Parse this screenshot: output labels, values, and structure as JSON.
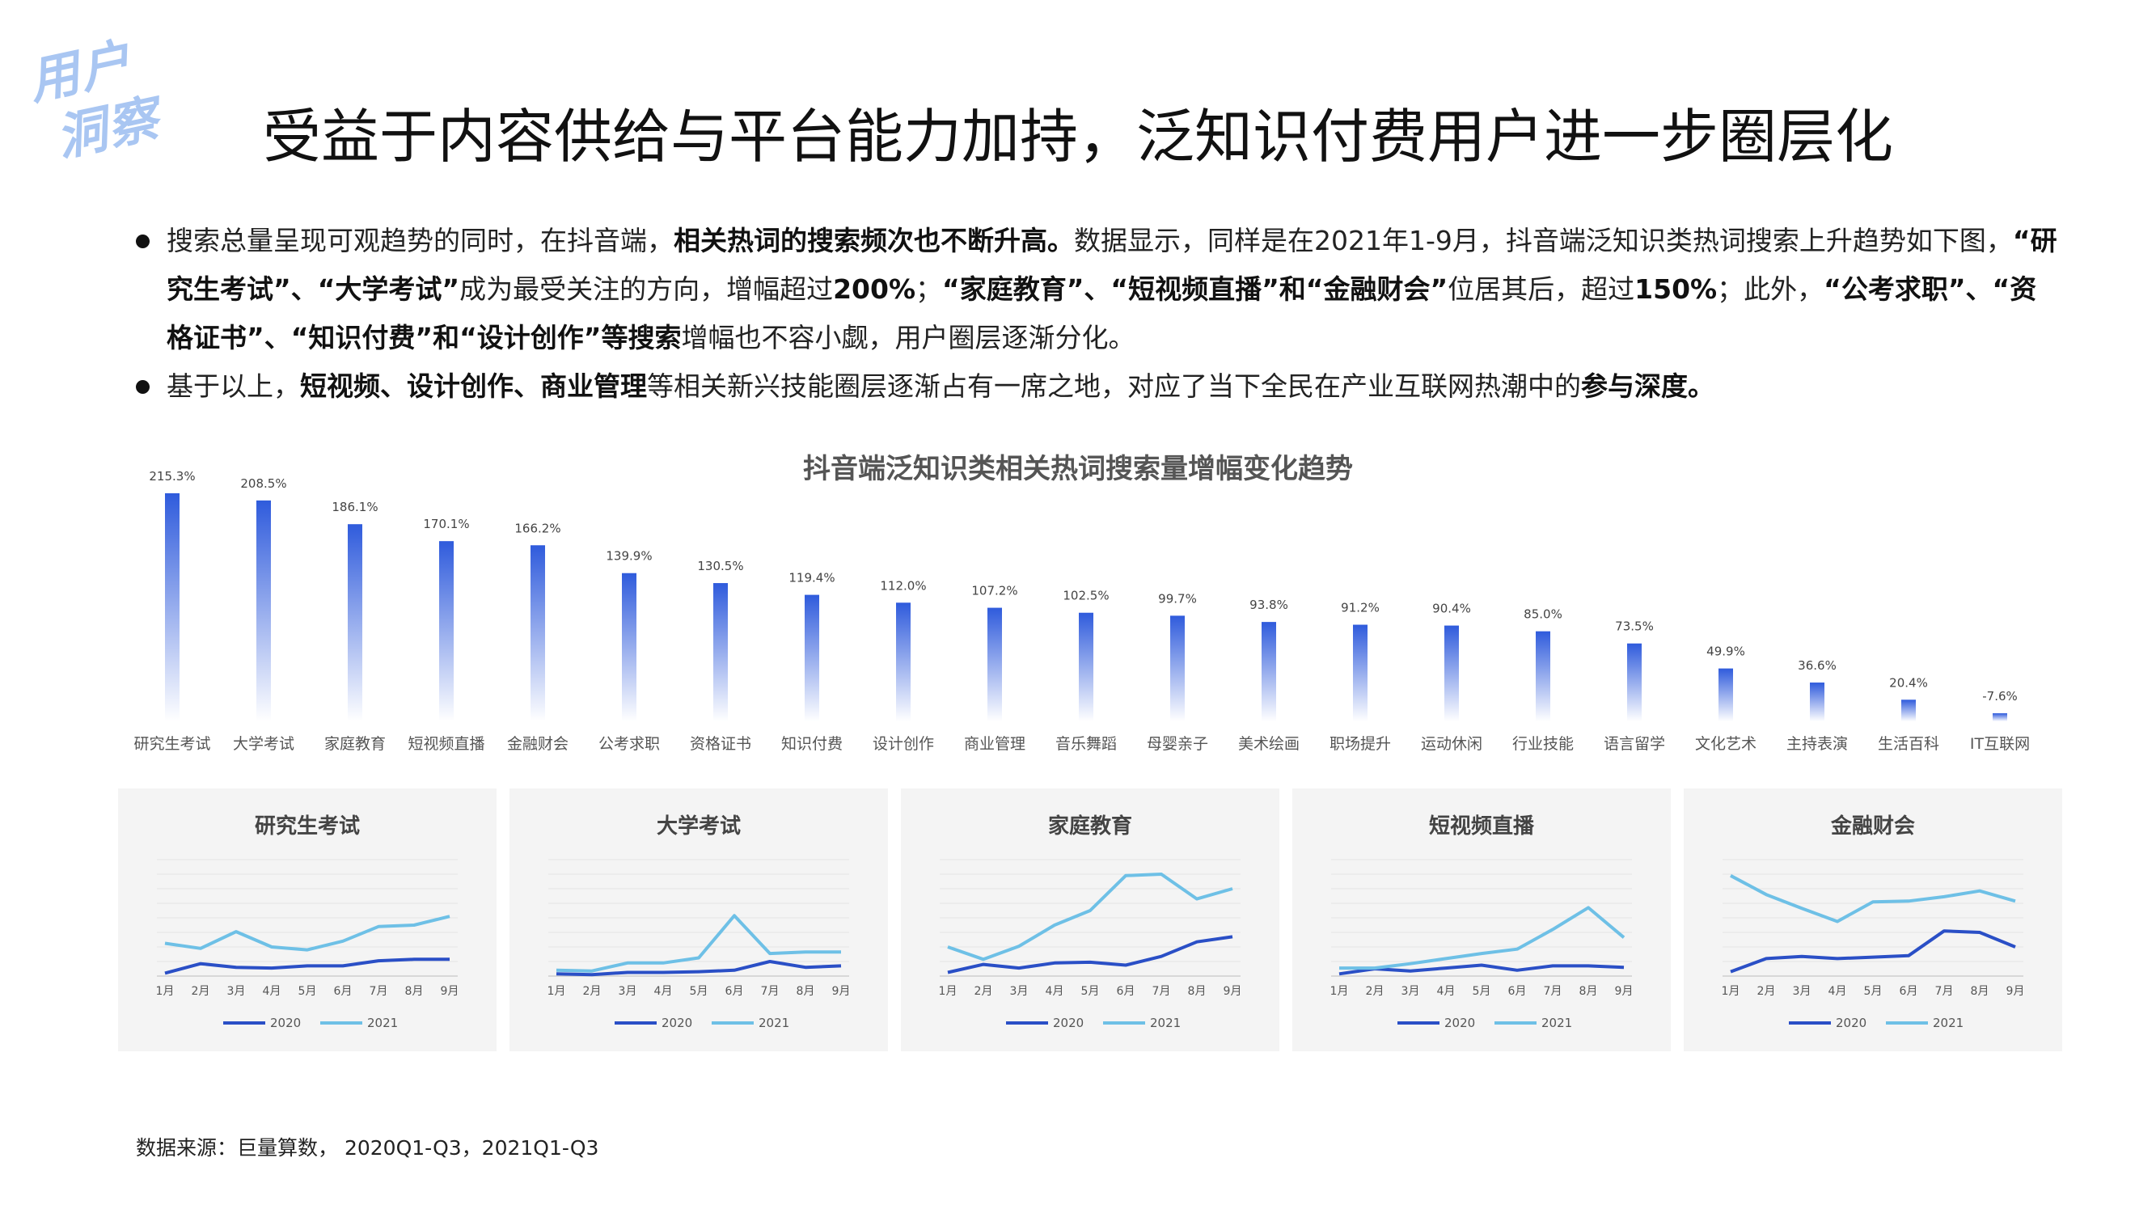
{
  "badge": {
    "line1": "用户",
    "line2": "洞察"
  },
  "title": "受益于内容供给与平台能力加持，泛知识付费用户进一步圈层化",
  "bullets": [
    {
      "segments": [
        {
          "text": "搜索总量呈现可观趋势的同时，在抖音端，",
          "bold": false
        },
        {
          "text": "相关热词的搜索频次也不断升高。",
          "bold": true
        },
        {
          "text": "数据显示，同样是在2021年1-9月，抖音端泛知识类热词搜索上升趋势如下图，",
          "bold": false
        },
        {
          "text": "“研究生考试”、“大学考试”",
          "bold": true
        },
        {
          "text": "成为最受关注的方向，增幅超过",
          "bold": false
        },
        {
          "text": "200%",
          "bold": true
        },
        {
          "text": "；",
          "bold": false
        },
        {
          "text": "“家庭教育”、“短视频直播”和“金融财会”",
          "bold": true
        },
        {
          "text": "位居其后，超过",
          "bold": false
        },
        {
          "text": "150%",
          "bold": true
        },
        {
          "text": "；此外，",
          "bold": false
        },
        {
          "text": "“公考求职”、“资格证书”、“知识付费”和“设计创作”等搜索",
          "bold": true
        },
        {
          "text": "增幅也不容小觑，用户圈层逐渐分化。",
          "bold": false
        }
      ]
    },
    {
      "segments": [
        {
          "text": "基于以上，",
          "bold": false
        },
        {
          "text": "短视频、设计创作、商业管理",
          "bold": true
        },
        {
          "text": "等相关新兴技能圈层逐渐占有一席之地，对应了当下全民在产业互联网热潮中的",
          "bold": false
        },
        {
          "text": "参与深度。",
          "bold": true
        }
      ]
    }
  ],
  "source": "数据来源：巨量算数， 2020Q1-Q3，2021Q1-Q3",
  "colors": {
    "bar_top": "#2f5bdc",
    "bar_bottom": "#ffffff",
    "line_2020": "#2a4fc6",
    "line_2021": "#6ec0e6",
    "panel_bg": "#f4f4f4"
  },
  "chart_data": [
    {
      "type": "bar",
      "title": "抖音端泛知识类相关热词搜索量增幅变化趋势",
      "categories": [
        "研究生考试",
        "大学考试",
        "家庭教育",
        "短视频直播",
        "金融财会",
        "公考求职",
        "资格证书",
        "知识付费",
        "设计创作",
        "商业管理",
        "音乐舞蹈",
        "母婴亲子",
        "美术绘画",
        "职场提升",
        "运动休闲",
        "行业技能",
        "语言留学",
        "文化艺术",
        "主持表演",
        "生活百科",
        "IT互联网"
      ],
      "values": [
        215.3,
        208.5,
        186.1,
        170.1,
        166.2,
        139.9,
        130.5,
        119.4,
        112.0,
        107.2,
        102.5,
        99.7,
        93.8,
        91.2,
        90.4,
        85.0,
        73.5,
        49.9,
        36.6,
        20.4,
        -7.6
      ],
      "labels": [
        "215.3%",
        "208.5%",
        "186.1%",
        "170.1%",
        "166.2%",
        "139.9%",
        "130.5%",
        "119.4%",
        "112.0%",
        "107.2%",
        "102.5%",
        "99.7%",
        "93.8%",
        "91.2%",
        "90.4%",
        "85.0%",
        "73.5%",
        "49.9%",
        "36.6%",
        "20.4%",
        "-7.6%"
      ],
      "unit": "%",
      "grid": false
    },
    {
      "type": "line",
      "title": "研究生考试",
      "categories": [
        "1月",
        "2月",
        "3月",
        "4月",
        "5月",
        "6月",
        "7月",
        "8月",
        "9月"
      ],
      "series": [
        {
          "name": "2020",
          "values": [
            4,
            17,
            12,
            11,
            14,
            14,
            21,
            23,
            23
          ]
        },
        {
          "name": "2021",
          "values": [
            45,
            38,
            61,
            40,
            36,
            48,
            68,
            70,
            82
          ]
        }
      ],
      "ylim": [
        0,
        160
      ],
      "legend": "bottom"
    },
    {
      "type": "line",
      "title": "大学考试",
      "categories": [
        "1月",
        "2月",
        "3月",
        "4月",
        "5月",
        "6月",
        "7月",
        "8月",
        "9月"
      ],
      "series": [
        {
          "name": "2020",
          "values": [
            3,
            2,
            5,
            5,
            6,
            8,
            20,
            12,
            14
          ]
        },
        {
          "name": "2021",
          "values": [
            8,
            7,
            18,
            18,
            25,
            83,
            31,
            33,
            33
          ]
        }
      ],
      "ylim": [
        0,
        160
      ],
      "legend": "bottom"
    },
    {
      "type": "line",
      "title": "家庭教育",
      "categories": [
        "1月",
        "2月",
        "3月",
        "4月",
        "5月",
        "6月",
        "7月",
        "8月",
        "9月"
      ],
      "series": [
        {
          "name": "2020",
          "values": [
            5,
            16,
            11,
            18,
            19,
            15,
            27,
            47,
            54
          ]
        },
        {
          "name": "2021",
          "values": [
            40,
            23,
            41,
            70,
            90,
            138,
            140,
            106,
            120
          ]
        }
      ],
      "ylim": [
        0,
        160
      ],
      "legend": "bottom"
    },
    {
      "type": "line",
      "title": "短视频直播",
      "categories": [
        "1月",
        "2月",
        "3月",
        "4月",
        "5月",
        "6月",
        "7月",
        "8月",
        "9月"
      ],
      "series": [
        {
          "name": "2020",
          "values": [
            3,
            10,
            7,
            11,
            15,
            8,
            14,
            14,
            12
          ]
        },
        {
          "name": "2021",
          "values": [
            11,
            11,
            17,
            24,
            31,
            37,
            64,
            94,
            53
          ]
        }
      ],
      "ylim": [
        0,
        160
      ],
      "legend": "bottom"
    },
    {
      "type": "line",
      "title": "金融财会",
      "categories": [
        "1月",
        "2月",
        "3月",
        "4月",
        "5月",
        "6月",
        "7月",
        "8月",
        "9月"
      ],
      "series": [
        {
          "name": "2020",
          "values": [
            6,
            24,
            27,
            24,
            26,
            28,
            62,
            60,
            40
          ]
        },
        {
          "name": "2021",
          "values": [
            138,
            112,
            93,
            75,
            102,
            103,
            109,
            117,
            103
          ]
        }
      ],
      "ylim": [
        0,
        160
      ],
      "legend": "bottom"
    }
  ]
}
